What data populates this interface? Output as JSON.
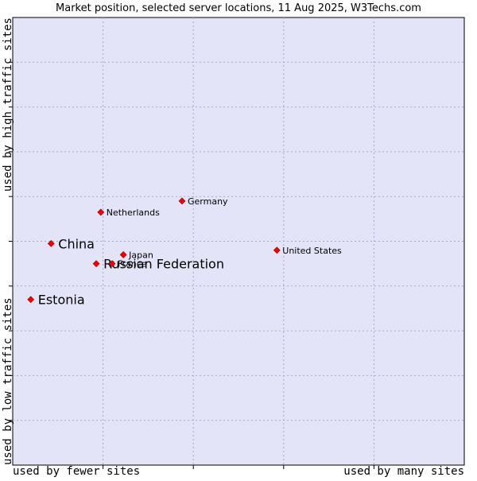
{
  "chart_data": {
    "type": "scatter",
    "title": "Market position, selected server locations, 11 Aug 2025, W3Techs.com",
    "xlabel_left": "used by fewer sites",
    "xlabel_right": "used by many sites",
    "ylabel_top": "used by high traffic sites",
    "ylabel_bottom": "used by low traffic sites",
    "xlim": [
      0,
      100
    ],
    "ylim": [
      0,
      100
    ],
    "grid": true,
    "points": [
      {
        "name": "China",
        "x": 8.5,
        "y": 49.5,
        "label_size": "large"
      },
      {
        "name": "Russian Federation",
        "x": 18.5,
        "y": 45.0,
        "label_size": "large"
      },
      {
        "name": "Estonia",
        "x": 4.0,
        "y": 37.0,
        "label_size": "large"
      },
      {
        "name": "Netherlands",
        "x": 19.5,
        "y": 56.5,
        "label_size": "small"
      },
      {
        "name": "Germany",
        "x": 37.5,
        "y": 59.0,
        "label_size": "small"
      },
      {
        "name": "Japan",
        "x": 24.5,
        "y": 47.0,
        "label_size": "small"
      },
      {
        "name": "France",
        "x": 22.0,
        "y": 45.0,
        "label_size": "small"
      },
      {
        "name": "United States",
        "x": 58.5,
        "y": 48.0,
        "label_size": "small"
      }
    ]
  },
  "colors": {
    "plot_background": "#e4e4f8",
    "marker": "#ee0000",
    "grid": "#a8a8c8",
    "text": "#000000"
  }
}
